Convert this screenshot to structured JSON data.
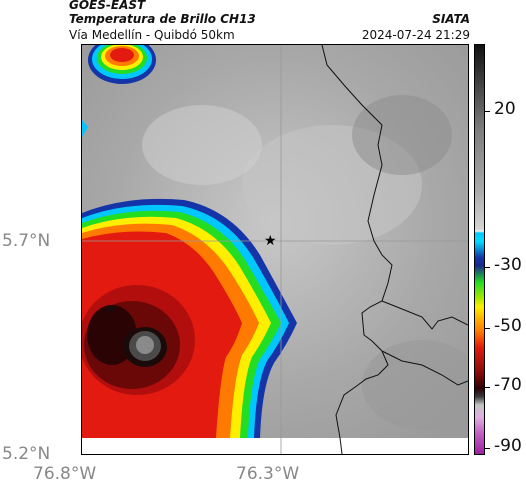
{
  "header": {
    "satellite": "GOES-EAST",
    "product": "Temperatura de Brillo CH13",
    "region": "Vía Medellín - Quibdó 50km",
    "source": "SIATA",
    "datetime": "2024-07-24 21:29"
  },
  "axes": {
    "lat_labels": [
      "5.7°N",
      "5.2°N"
    ],
    "lon_labels": [
      "76.8°W",
      "76.3°W"
    ]
  },
  "colorbar": {
    "tick_labels": [
      "20",
      "-30",
      "-50",
      "-70",
      "-90"
    ]
  },
  "colors": {
    "cold_cloud_core": "#4a4a4a",
    "red": "#e31a0f",
    "orange": "#ff7a00",
    "yellow": "#ffee00",
    "green": "#22dd22",
    "cyan": "#00c8ff",
    "blue": "#1434a8",
    "background_gray": "#9a9a9a"
  },
  "map": {
    "marker": "star"
  }
}
